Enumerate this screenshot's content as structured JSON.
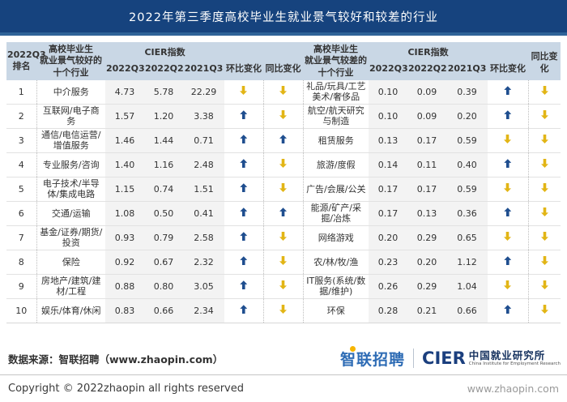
{
  "title": "2022年第三季度高校毕业生就业景气较好和较差的行业",
  "header": {
    "rank": "2022Q3\n排名",
    "good": "高校毕业生\n就业景气较好的\n十个行业",
    "bad": "高校毕业生\n就业景气较差的\n十个行业",
    "cier": "CIER指数",
    "quarters": [
      "2022Q3",
      "2022Q2",
      "2021Q3"
    ],
    "mom": "环比变化",
    "yoy": "同比变化"
  },
  "chart_data": {
    "type": "table",
    "title": "2022年第三季度高校毕业生就业景气较好和较差的行业",
    "quarter_columns": [
      "2022Q3",
      "2022Q2",
      "2021Q3"
    ],
    "good_industries": [
      {
        "rank": "1",
        "industry": "中介服务",
        "cier": [
          "4.73",
          "5.78",
          "22.29"
        ],
        "qoq": "down",
        "yoy": "down"
      },
      {
        "rank": "2",
        "industry": "互联网/电子商务",
        "cier": [
          "1.57",
          "1.20",
          "3.38"
        ],
        "qoq": "up",
        "yoy": "down"
      },
      {
        "rank": "3",
        "industry": "通信/电信运营/增值服务",
        "cier": [
          "1.46",
          "1.44",
          "0.71"
        ],
        "qoq": "up",
        "yoy": "up"
      },
      {
        "rank": "4",
        "industry": "专业服务/咨询",
        "cier": [
          "1.40",
          "1.16",
          "2.48"
        ],
        "qoq": "up",
        "yoy": "down"
      },
      {
        "rank": "5",
        "industry": "电子技术/半导体/集成电路",
        "cier": [
          "1.15",
          "0.74",
          "1.51"
        ],
        "qoq": "up",
        "yoy": "down"
      },
      {
        "rank": "6",
        "industry": "交通/运输",
        "cier": [
          "1.08",
          "0.50",
          "0.41"
        ],
        "qoq": "up",
        "yoy": "up"
      },
      {
        "rank": "7",
        "industry": "基金/证券/期货/投资",
        "cier": [
          "0.93",
          "0.79",
          "2.58"
        ],
        "qoq": "up",
        "yoy": "down"
      },
      {
        "rank": "8",
        "industry": "保险",
        "cier": [
          "0.92",
          "0.67",
          "2.32"
        ],
        "qoq": "up",
        "yoy": "down"
      },
      {
        "rank": "9",
        "industry": "房地产/建筑/建材/工程",
        "cier": [
          "0.88",
          "0.80",
          "3.05"
        ],
        "qoq": "up",
        "yoy": "down"
      },
      {
        "rank": "10",
        "industry": "娱乐/体育/休闲",
        "cier": [
          "0.83",
          "0.66",
          "2.34"
        ],
        "qoq": "up",
        "yoy": "down"
      }
    ],
    "bad_industries": [
      {
        "industry": "礼品/玩具/工艺美术/奢侈品",
        "cier": [
          "0.10",
          "0.09",
          "0.39"
        ],
        "qoq": "up",
        "yoy": "down"
      },
      {
        "industry": "航空/航天研究与制造",
        "cier": [
          "0.10",
          "0.09",
          "0.20"
        ],
        "qoq": "up",
        "yoy": "down"
      },
      {
        "industry": "租赁服务",
        "cier": [
          "0.13",
          "0.17",
          "0.59"
        ],
        "qoq": "down",
        "yoy": "down"
      },
      {
        "industry": "旅游/度假",
        "cier": [
          "0.14",
          "0.11",
          "0.40"
        ],
        "qoq": "up",
        "yoy": "down"
      },
      {
        "industry": "广告/会展/公关",
        "cier": [
          "0.17",
          "0.17",
          "0.59"
        ],
        "qoq": "down",
        "yoy": "down"
      },
      {
        "industry": "能源/矿产/采掘/冶炼",
        "cier": [
          "0.17",
          "0.13",
          "0.36"
        ],
        "qoq": "up",
        "yoy": "down"
      },
      {
        "industry": "网络游戏",
        "cier": [
          "0.20",
          "0.29",
          "0.65"
        ],
        "qoq": "down",
        "yoy": "down"
      },
      {
        "industry": "农/林/牧/渔",
        "cier": [
          "0.23",
          "0.20",
          "1.12"
        ],
        "qoq": "up",
        "yoy": "down"
      },
      {
        "industry": "IT服务(系统/数据/维护)",
        "cier": [
          "0.26",
          "0.29",
          "1.04"
        ],
        "qoq": "down",
        "yoy": "down"
      },
      {
        "industry": "环保",
        "cier": [
          "0.28",
          "0.21",
          "0.66"
        ],
        "qoq": "up",
        "yoy": "down"
      }
    ]
  },
  "footer": {
    "source": "数据来源：智联招聘（www.zhaopin.com）",
    "zhaopin_logo": "智联招聘",
    "cier_logo": "CIER",
    "cier_cn": "中国就业研究所",
    "cier_en": "China Institute for Employment Research",
    "copyright": "Copyright © 2022zhaopin all rights reserved",
    "site": "www.zhaopin.com"
  },
  "colors": {
    "title_bar": "#16437E",
    "title_accent": "#2F6398",
    "header_bg": "#C9D7E5",
    "up_arrow": "#1F4E8F",
    "down_arrow": "#E2B515"
  }
}
